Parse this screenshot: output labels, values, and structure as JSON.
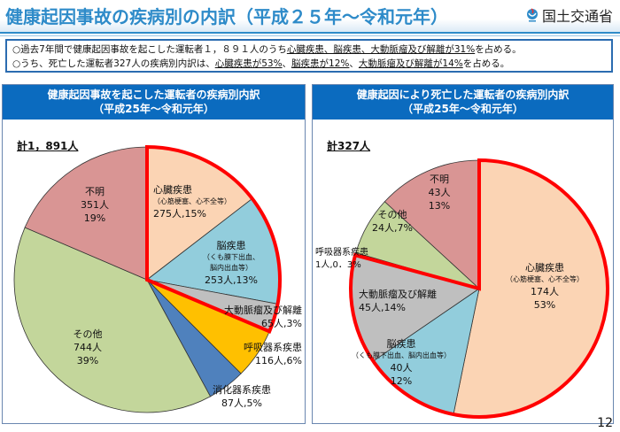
{
  "header": {
    "title": "健康起因事故の疾病別の内訳（平成２５年～令和元年）",
    "logo_text": "国土交通省"
  },
  "summary": {
    "line1": {
      "pre": "○過去7年間で健康起因事故を起こした運転者１，８９１人のうち",
      "underlined": "心臓疾患、脳疾患、大動脈瘤及び解離が31%",
      "post": "を占める。"
    },
    "line2": {
      "pre": "○うち、死亡した運転者327人の疾病別内訳は、",
      "u1": "心臓疾患が53%",
      "sep1": "、",
      "u2": "脳疾患が12%",
      "sep2": "、",
      "u3": "大動脈瘤及び解離が14%",
      "post": "を占める。"
    }
  },
  "page_number": "12",
  "chart_data": [
    {
      "type": "pie",
      "title": "健康起因事故を起こした運転者の疾病別内訳",
      "subtitle": "（平成25年～令和元年）",
      "total_label": "計1，891人",
      "start": "top",
      "direction": "clockwise",
      "highlighted": [
        "心臓疾患",
        "脳疾患",
        "大動脈瘤及び解離"
      ],
      "highlight_color": "#ff0000",
      "slices": [
        {
          "name": "心臓疾患",
          "note": "（心筋梗塞、心不全等）",
          "count": 275,
          "percent": 15,
          "label": "275人,15%",
          "color": "#fbd4b4"
        },
        {
          "name": "脳疾患",
          "note": "（くも膜下出血、脳内出血等）",
          "count": 253,
          "percent": 13,
          "label": "253人,13%",
          "color": "#92cddc"
        },
        {
          "name": "大動脈瘤及び解離",
          "note": "",
          "count": 65,
          "percent": 3,
          "label": "65人,3%",
          "color": "#bfbfbf"
        },
        {
          "name": "呼吸器系疾患",
          "note": "",
          "count": 116,
          "percent": 6,
          "label": "116人,6%",
          "color": "#ffc000"
        },
        {
          "name": "消化器系疾患",
          "note": "",
          "count": 87,
          "percent": 5,
          "label": "87人,5%",
          "color": "#4f81bd"
        },
        {
          "name": "その他",
          "note": "",
          "count": 744,
          "percent": 39,
          "label_lines": [
            "744人",
            "39%"
          ],
          "color": "#c3d69b"
        },
        {
          "name": "不明",
          "note": "",
          "count": 351,
          "percent": 19,
          "label_lines": [
            "351人",
            "19%"
          ],
          "color": "#d99594"
        }
      ]
    },
    {
      "type": "pie",
      "title": "健康起因により死亡した運転者の疾病別内訳",
      "subtitle": "（平成25年～令和元年）",
      "total_label": "計327人",
      "start": "top",
      "direction": "clockwise",
      "highlighted": [
        "心臓疾患",
        "脳疾患",
        "大動脈瘤及び解離"
      ],
      "highlight_color": "#ff0000",
      "slices": [
        {
          "name": "心臓疾患",
          "note": "（心筋梗塞、心不全等）",
          "count": 174,
          "percent": 53,
          "label_lines": [
            "174人",
            "53%"
          ],
          "color": "#fbd4b4"
        },
        {
          "name": "脳疾患",
          "note": "（くも膜下出血、脳内出血等）",
          "count": 40,
          "percent": 12,
          "label_lines": [
            "40人",
            "12%"
          ],
          "color": "#92cddc"
        },
        {
          "name": "大動脈瘤及び解離",
          "note": "",
          "count": 45,
          "percent": 14,
          "label": "45人,14%",
          "color": "#bfbfbf"
        },
        {
          "name": "呼吸器系疾患",
          "note": "",
          "count": 1,
          "percent": 0.3,
          "label": "1人,0．3%",
          "color": "#ffc000"
        },
        {
          "name": "その他",
          "note": "",
          "count": 24,
          "percent": 7,
          "label": "24人,7%",
          "color": "#c3d69b"
        },
        {
          "name": "不明",
          "note": "",
          "count": 43,
          "percent": 13,
          "label_lines": [
            "43人",
            "13%"
          ],
          "color": "#d99594"
        }
      ]
    }
  ]
}
